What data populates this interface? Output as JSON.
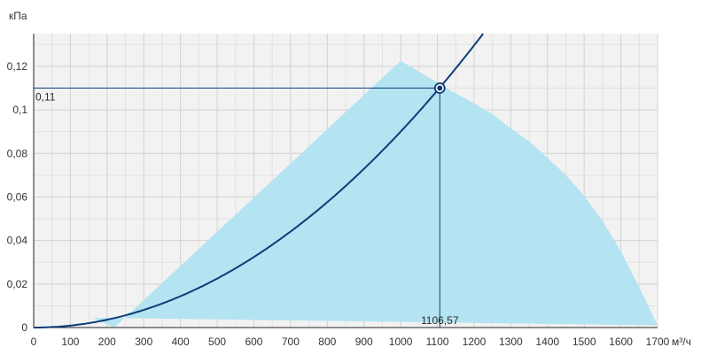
{
  "chart_data": {
    "type": "area",
    "title": "",
    "xlabel": "м³/ч",
    "ylabel": "кПа",
    "xlim": [
      0,
      1700
    ],
    "ylim": [
      0,
      0.135
    ],
    "x_ticks": [
      0,
      100,
      200,
      300,
      400,
      500,
      600,
      700,
      800,
      900,
      1000,
      1100,
      1200,
      1300,
      1400,
      1500,
      1600,
      1700
    ],
    "x_tick_labels": [
      "0",
      "100",
      "200",
      "300",
      "400",
      "500",
      "600",
      "700",
      "800",
      "900",
      "1000",
      "1100",
      "1200",
      "1300",
      "1400",
      "1500",
      "1600",
      "1700"
    ],
    "y_ticks": [
      0,
      0.02,
      0.04,
      0.06,
      0.08,
      0.1,
      0.12
    ],
    "y_tick_labels": [
      "0",
      "0,02",
      "0,04",
      "0,06",
      "0,08",
      "0,1",
      "0,12"
    ],
    "grid": true,
    "minor_x_step": 50,
    "minor_y_step": 0.01,
    "series": [
      {
        "kind": "area",
        "color": "#b4e3f1",
        "points": [
          [
            160,
            0.0045
          ],
          [
            220,
            0
          ],
          [
            1000,
            0.1225
          ],
          [
            1050,
            0.1175
          ],
          [
            1100,
            0.1125
          ],
          [
            1150,
            0.1075
          ],
          [
            1200,
            0.103
          ],
          [
            1250,
            0.098
          ],
          [
            1300,
            0.0915
          ],
          [
            1350,
            0.0855
          ],
          [
            1400,
            0.078
          ],
          [
            1450,
            0.07
          ],
          [
            1500,
            0.0605
          ],
          [
            1550,
            0.049
          ],
          [
            1600,
            0.035
          ],
          [
            1650,
            0.0185
          ],
          [
            1700,
            0.001
          ]
        ]
      },
      {
        "kind": "curve",
        "color": "#0d3c78",
        "coefficient": 9e-08,
        "x_range": [
          0,
          1230
        ]
      }
    ],
    "operating_point": {
      "x": 1106.57,
      "y": 0.11,
      "x_label": "1106,57",
      "y_label": "0,11",
      "color": "#0d3c78"
    },
    "colors": {
      "grid": "#d4d4d4",
      "axis": "#222222",
      "background": "#f2f2f2"
    }
  }
}
